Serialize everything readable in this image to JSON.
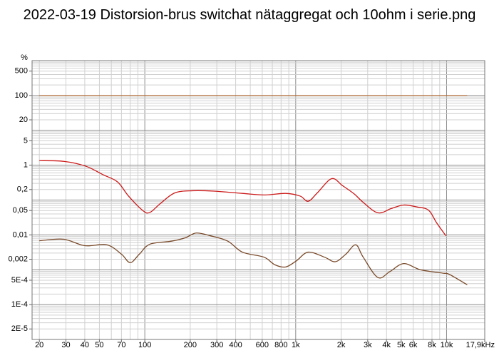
{
  "chart_data": {
    "type": "line",
    "title": "2022-03-19 Distorsion-brus switchat nätaggregat och 10ohm i serie.png",
    "y_unit": "%",
    "log_x": true,
    "log_y": true,
    "grid": true,
    "xlim": [
      17.9,
      17900
    ],
    "ylim": [
      1e-05,
      1000
    ],
    "xticks": [
      20,
      30,
      40,
      50,
      70,
      100,
      200,
      300,
      400,
      600,
      800,
      {
        "value": 1000,
        "label": "1k"
      },
      {
        "value": 2000,
        "label": "2k"
      },
      {
        "value": 3000,
        "label": "3k"
      },
      {
        "value": 4000,
        "label": "4k"
      },
      {
        "value": 5000,
        "label": "5k"
      },
      {
        "value": 6000,
        "label": "6k"
      },
      {
        "value": 8000,
        "label": "8k"
      },
      {
        "value": 10000,
        "label": "10k"
      },
      {
        "value": 17900,
        "label": "17,9kHz"
      }
    ],
    "yticks": [
      500,
      100,
      20,
      5,
      1,
      {
        "value": 0.2,
        "label": "0,2"
      },
      {
        "value": 0.05,
        "label": "0,05"
      },
      {
        "value": 0.01,
        "label": "0,01"
      },
      {
        "value": 0.002,
        "label": "0,002"
      },
      {
        "value": 0.0005,
        "label": "5E-4"
      },
      {
        "value": 0.0001,
        "label": "1E-4"
      },
      {
        "value": 2e-05,
        "label": "2E-5"
      }
    ],
    "series": [
      {
        "color": "#b5703c",
        "x": [
          20,
          13700
        ],
        "values": [
          100,
          100
        ]
      },
      {
        "color": "#cc1a1a",
        "x": [
          20,
          29,
          40.5,
          53,
          66,
          78,
          97,
          108,
          127,
          158,
          207,
          287,
          443,
          616,
          858,
          1070,
          1210,
          1390,
          1730,
          2040,
          2440,
          2800,
          3500,
          4300,
          5200,
          6400,
          7600,
          8600,
          9900
        ],
        "values": [
          1.35,
          1.29,
          0.94,
          0.53,
          0.33,
          0.13,
          0.05,
          0.044,
          0.08,
          0.16,
          0.185,
          0.18,
          0.155,
          0.14,
          0.155,
          0.13,
          0.092,
          0.16,
          0.41,
          0.26,
          0.15,
          0.086,
          0.043,
          0.057,
          0.072,
          0.063,
          0.051,
          0.022,
          0.0094
        ]
      },
      {
        "color": "#7a4a2a",
        "x": [
          20,
          29,
          40,
          56,
          70,
          80,
          92,
          108,
          150,
          186,
          219,
          273,
          355,
          443,
          616,
          725,
          858,
          1010,
          1210,
          1550,
          1830,
          2150,
          2500,
          2800,
          3500,
          4200,
          5200,
          6700,
          9400,
          10400,
          13700
        ],
        "values": [
          0.0068,
          0.0075,
          0.0049,
          0.0052,
          0.0028,
          0.0016,
          0.0028,
          0.0054,
          0.0066,
          0.0083,
          0.0113,
          0.0094,
          0.0066,
          0.0032,
          0.0023,
          0.0014,
          0.0012,
          0.0018,
          0.0032,
          0.0023,
          0.0017,
          0.0028,
          0.0052,
          0.0023,
          0.0006,
          0.00088,
          0.0015,
          0.001,
          0.0008,
          0.00074,
          0.00037
        ]
      }
    ]
  }
}
